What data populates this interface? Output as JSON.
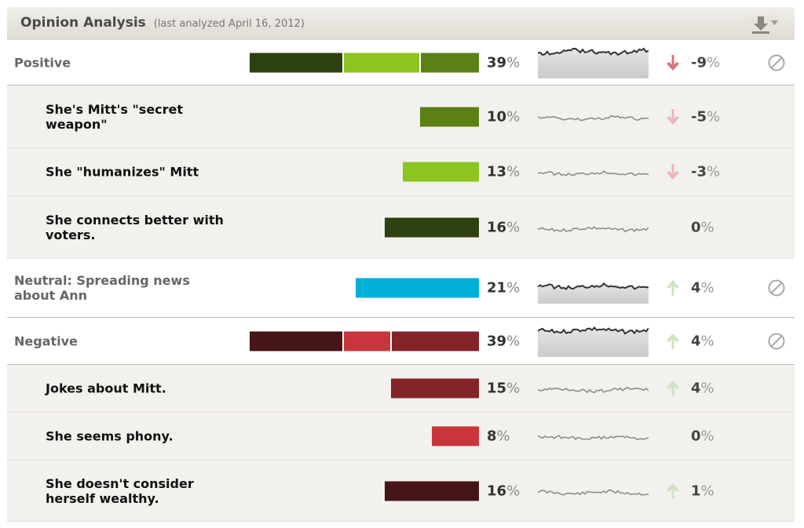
{
  "header": {
    "title": "Opinion Analysis",
    "subtitle": "(last analyzed April 16, 2012)",
    "download_icon": "download-icon"
  },
  "colors": {
    "dark_green": "#2e4210",
    "lime_green": "#8cc420",
    "mid_green": "#5b8016",
    "cyan": "#00b0d8",
    "dark_maroon": "#461517",
    "red": "#c8353a",
    "maroon": "#832428",
    "down_arrow": "#d2747c",
    "down_arrow_light": "#eab8bc",
    "up_arrow_light": "#cfe3c3"
  },
  "rows": [
    {
      "kind": "category",
      "label": "Positive",
      "bar_segments": [
        {
          "value": 16,
          "color": "dark_green"
        },
        {
          "value": 13,
          "color": "lime_green"
        },
        {
          "value": 10,
          "color": "mid_green"
        }
      ],
      "pct": "39",
      "pct_unit": "%",
      "trend": "down",
      "change": "-9",
      "change_unit": "%",
      "block_icon": "block-icon"
    },
    {
      "kind": "sub",
      "label": "She's Mitt's \"secret\nweapon\"",
      "bar_segments": [
        {
          "value": 10,
          "color": "mid_green"
        }
      ],
      "pct": "10",
      "pct_unit": "%",
      "trend": "down-light",
      "change": "-5",
      "change_unit": "%"
    },
    {
      "kind": "sub",
      "label": "She \"humanizes\" Mitt",
      "bar_segments": [
        {
          "value": 13,
          "color": "lime_green"
        }
      ],
      "pct": "13",
      "pct_unit": "%",
      "trend": "down-light",
      "change": "-3",
      "change_unit": "%"
    },
    {
      "kind": "sub",
      "label": "She connects better with\nvoters.",
      "bar_segments": [
        {
          "value": 16,
          "color": "dark_green"
        }
      ],
      "pct": "16",
      "pct_unit": "%",
      "trend": "none",
      "change": "0",
      "change_unit": "%"
    },
    {
      "kind": "category",
      "label": "Neutral: Spreading news\nabout Ann",
      "bar_segments": [
        {
          "value": 21,
          "color": "cyan"
        }
      ],
      "pct": "21",
      "pct_unit": "%",
      "trend": "up-light",
      "change": "4",
      "change_unit": "%",
      "block_icon": "block-icon"
    },
    {
      "kind": "category",
      "label": "Negative",
      "bar_segments": [
        {
          "value": 16,
          "color": "dark_maroon"
        },
        {
          "value": 8,
          "color": "red"
        },
        {
          "value": 15,
          "color": "maroon"
        }
      ],
      "pct": "39",
      "pct_unit": "%",
      "trend": "up-light",
      "change": "4",
      "change_unit": "%",
      "block_icon": "block-icon"
    },
    {
      "kind": "sub",
      "label": "Jokes about Mitt.",
      "bar_segments": [
        {
          "value": 15,
          "color": "maroon"
        }
      ],
      "pct": "15",
      "pct_unit": "%",
      "trend": "up-light",
      "change": "4",
      "change_unit": "%"
    },
    {
      "kind": "sub",
      "label": "She seems phony.",
      "bar_segments": [
        {
          "value": 8,
          "color": "red"
        }
      ],
      "pct": "8",
      "pct_unit": "%",
      "trend": "none",
      "change": "0",
      "change_unit": "%"
    },
    {
      "kind": "sub",
      "label": "She doesn't consider\nherself wealthy.",
      "bar_segments": [
        {
          "value": 16,
          "color": "dark_maroon"
        }
      ],
      "pct": "16",
      "pct_unit": "%",
      "trend": "up-light",
      "change": "1",
      "change_unit": "%"
    }
  ]
}
